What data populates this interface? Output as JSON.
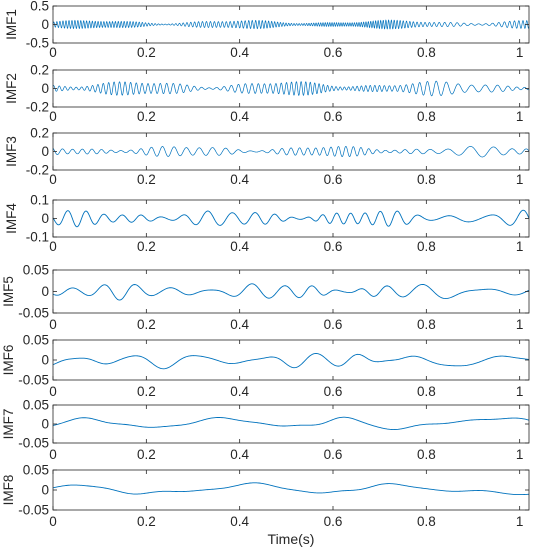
{
  "chart_data": [
    {
      "type": "line",
      "ylabel": "IMF1",
      "ylim": [
        -0.5,
        0.5
      ],
      "yticks": [
        "0.5",
        "0",
        "-0.5"
      ],
      "xlim": [
        0,
        1.02
      ],
      "xticks": [
        "0",
        "0.2",
        "0.4",
        "0.6",
        "0.8",
        "1"
      ],
      "series": [
        {
          "color": "#0072BD",
          "dominant_frequency_hz": 150,
          "amplitude": 0.12
        }
      ]
    },
    {
      "type": "line",
      "ylabel": "IMF2",
      "ylim": [
        -0.2,
        0.2
      ],
      "yticks": [
        "0.2",
        "0",
        "-0.2"
      ],
      "xlim": [
        0,
        1.02
      ],
      "xticks": [
        "0",
        "0.2",
        "0.4",
        "0.6",
        "0.8",
        "1"
      ],
      "series": [
        {
          "color": "#0072BD",
          "dominant_frequency_hz": 80,
          "amplitude": 0.08
        }
      ]
    },
    {
      "type": "line",
      "ylabel": "IMF3",
      "ylim": [
        -0.2,
        0.2
      ],
      "yticks": [
        "0.2",
        "0",
        "-0.2"
      ],
      "xlim": [
        0,
        1.02
      ],
      "xticks": [
        "0",
        "0.2",
        "0.4",
        "0.6",
        "0.8",
        "1"
      ],
      "series": [
        {
          "color": "#0072BD",
          "dominant_frequency_hz": 45,
          "amplitude": 0.06
        }
      ]
    },
    {
      "type": "line",
      "ylabel": "IMF4",
      "ylim": [
        -0.1,
        0.1
      ],
      "yticks": [
        "0.1",
        "0",
        "-0.1"
      ],
      "xlim": [
        0,
        1.02
      ],
      "xticks": [
        "0",
        "0.2",
        "0.4",
        "0.6",
        "0.8",
        "1"
      ],
      "series": [
        {
          "color": "#0072BD",
          "dominant_frequency_hz": 24,
          "amplitude": 0.045
        }
      ]
    },
    {
      "type": "line",
      "ylabel": "IMF5",
      "ylim": [
        -0.05,
        0.05
      ],
      "yticks": [
        "0.05",
        "0",
        "-0.05"
      ],
      "xlim": [
        0,
        1.02
      ],
      "xticks": [
        "0",
        "0.2",
        "0.4",
        "0.6",
        "0.8",
        "1"
      ],
      "series": [
        {
          "color": "#0072BD",
          "dominant_frequency_hz": 14,
          "amplitude": 0.02
        }
      ]
    },
    {
      "type": "line",
      "ylabel": "IMF6",
      "ylim": [
        -0.05,
        0.05
      ],
      "yticks": [
        "0.05",
        "0",
        "-0.05"
      ],
      "xlim": [
        0,
        1.02
      ],
      "xticks": [
        "0",
        "0.2",
        "0.4",
        "0.6",
        "0.8",
        "1"
      ],
      "series": [
        {
          "color": "#0072BD",
          "dominant_frequency_hz": 8,
          "amplitude": 0.022
        }
      ]
    },
    {
      "type": "line",
      "ylabel": "IMF7",
      "ylim": [
        -0.05,
        0.05
      ],
      "yticks": [
        "0.05",
        "0",
        "-0.05"
      ],
      "xlim": [
        0,
        1.02
      ],
      "xticks": [
        "0",
        "0.2",
        "0.4",
        "0.6",
        "0.8",
        "1"
      ],
      "series": [
        {
          "color": "#0072BD",
          "dominant_frequency_hz": 3.6,
          "amplitude": 0.02
        }
      ]
    },
    {
      "type": "line",
      "ylabel": "IMF8",
      "ylim": [
        -0.05,
        0.05
      ],
      "yticks": [
        "0.05",
        "0",
        "-0.05"
      ],
      "xlim": [
        0,
        1.02
      ],
      "xticks": [
        "0",
        "0.2",
        "0.4",
        "0.6",
        "0.8",
        "1"
      ],
      "xlabel": "Time(s)",
      "series": [
        {
          "color": "#0072BD",
          "dominant_frequency_hz": 2.8,
          "amplitude": 0.018
        }
      ]
    }
  ]
}
